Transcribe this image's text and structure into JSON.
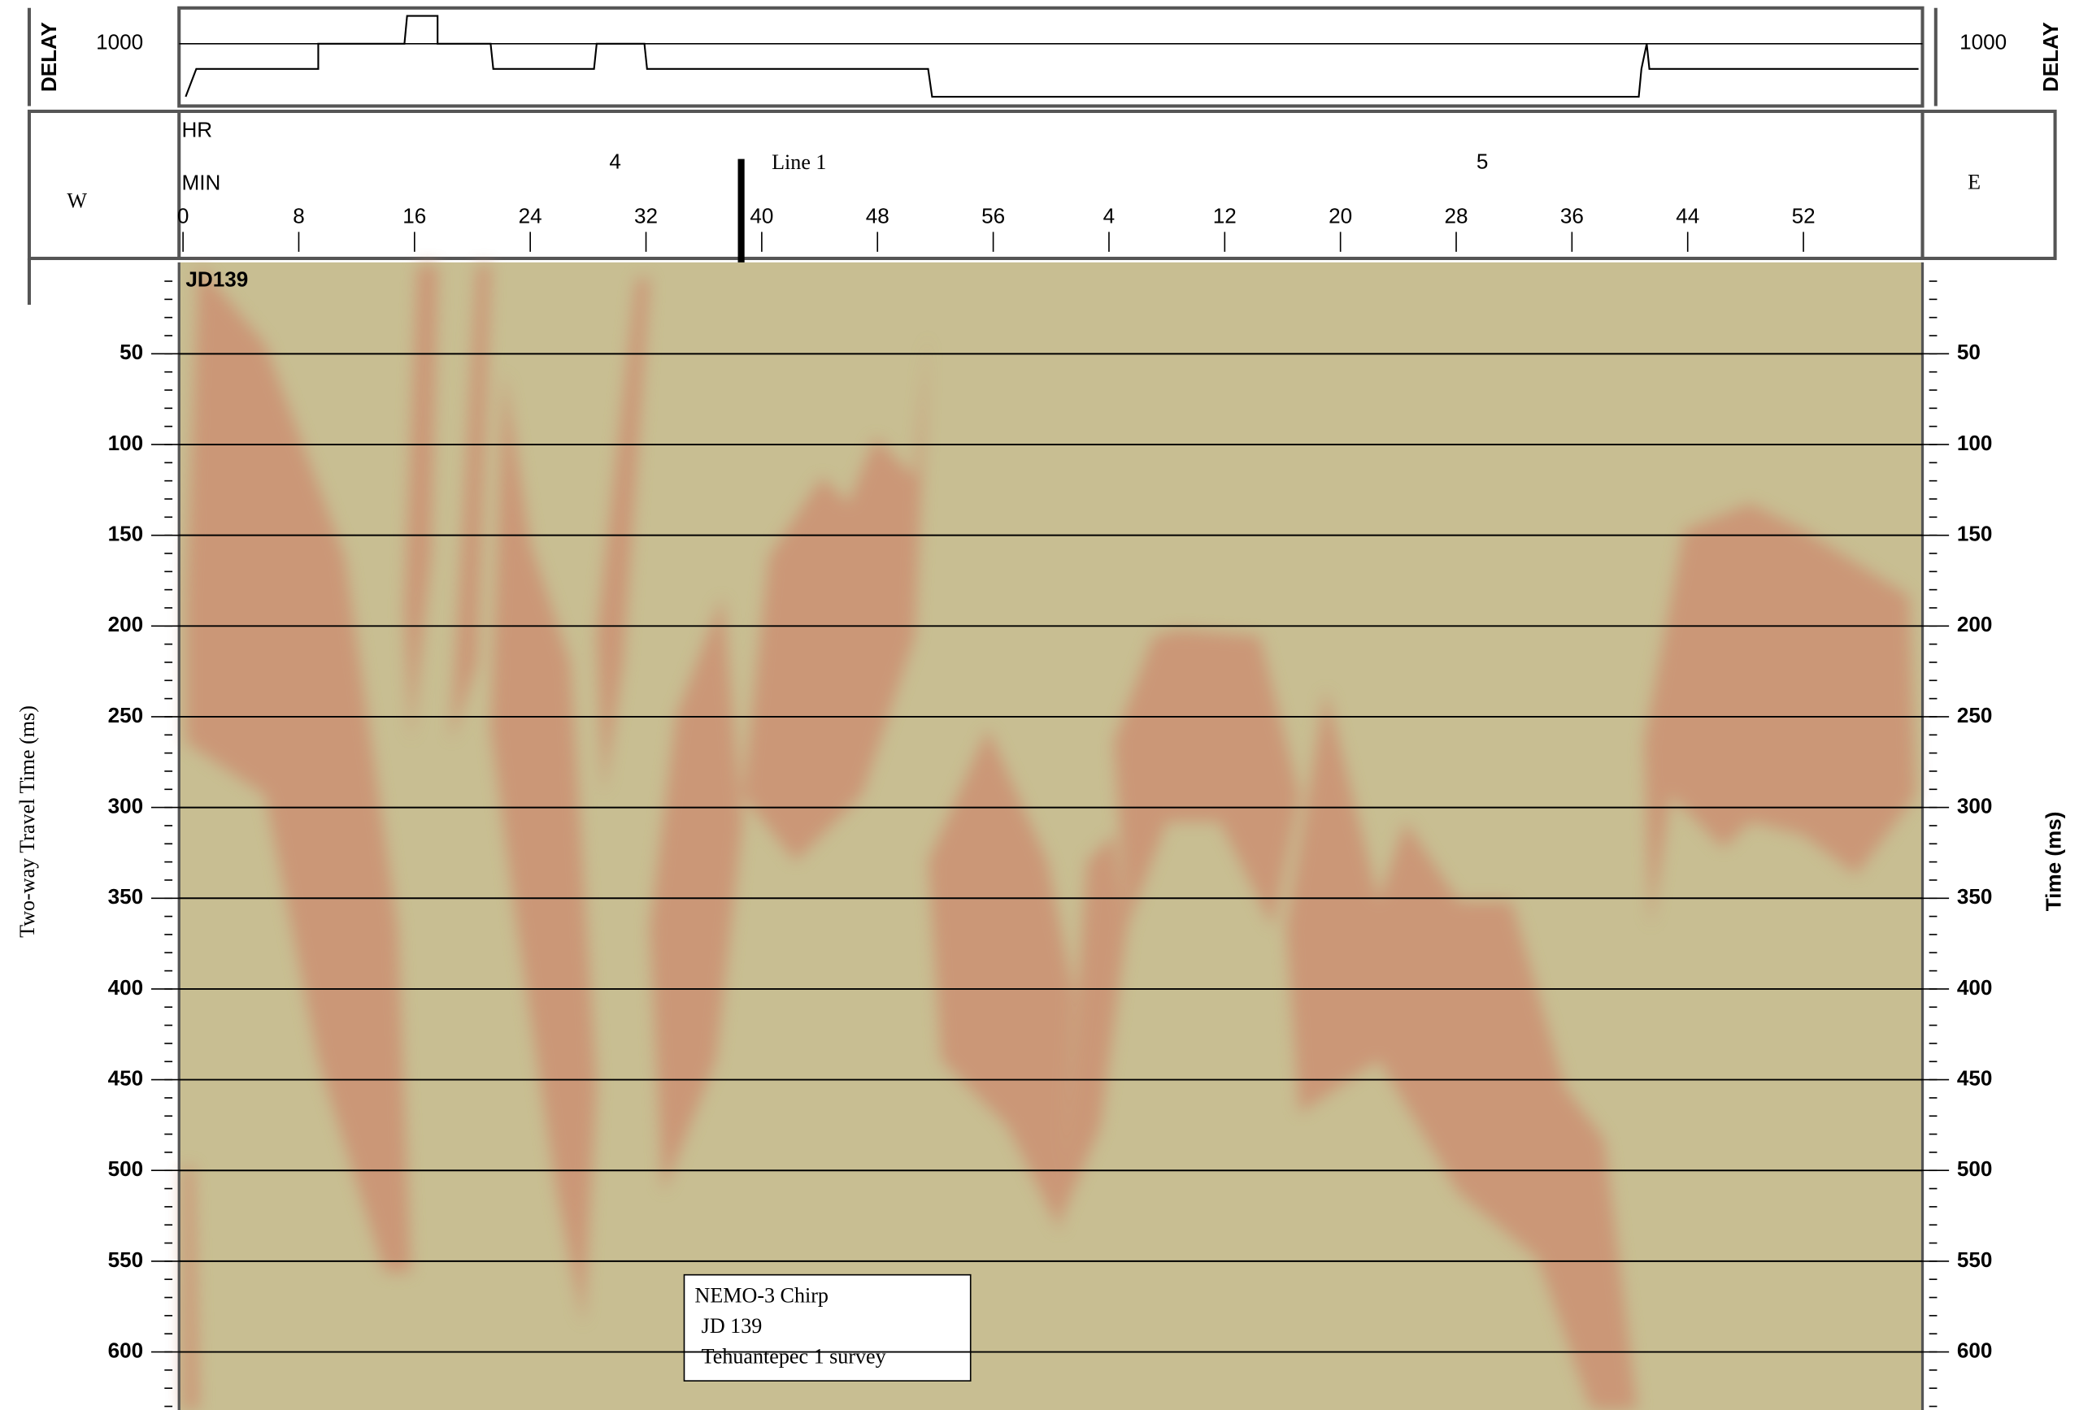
{
  "left_label": "W",
  "right_label": "E",
  "line_label": "Line 1",
  "delay_panel": {
    "label": "DELAY",
    "tick": 1000
  },
  "time_header": {
    "hour_label": "HR",
    "minute_label": "MIN",
    "hours": [
      "4",
      "5"
    ],
    "minutes": [
      0,
      8,
      16,
      24,
      32,
      40,
      48,
      56,
      4,
      12,
      20,
      28,
      36,
      44,
      52
    ]
  },
  "profile": {
    "tag": "JD139",
    "ylim": [
      0,
      632
    ],
    "yticks": [
      50,
      100,
      150,
      200,
      250,
      300,
      350,
      400,
      450,
      500,
      550,
      600
    ],
    "y_label_left": "Two-way Travel Time (ms)",
    "y_label_right": "Time (ms)"
  },
  "caption": {
    "lines": [
      "NEMO-3 Chirp",
      "JD 139",
      "Tehuantepec 1 survey"
    ]
  }
}
